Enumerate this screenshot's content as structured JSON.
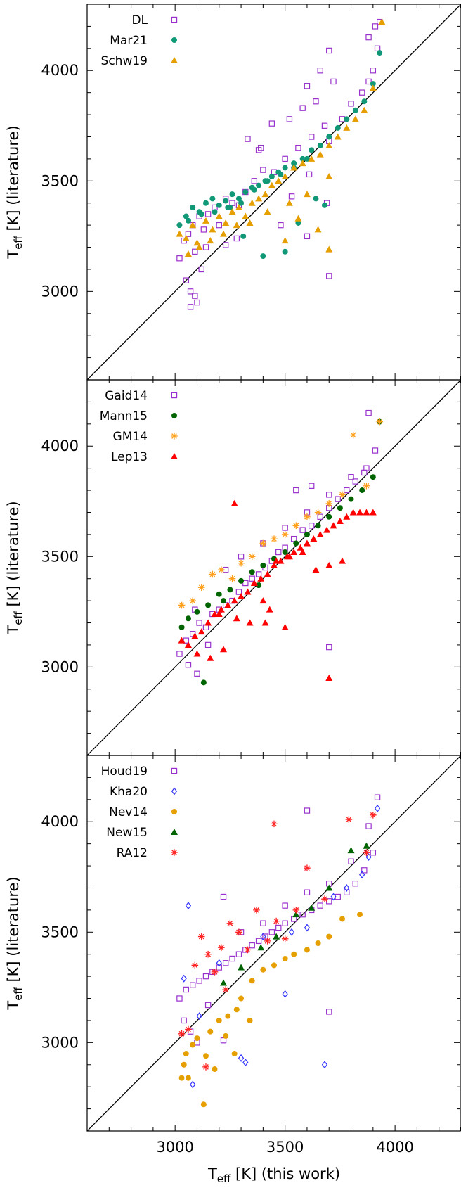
{
  "chart_data": [
    {
      "type": "scatter",
      "xlabel": "",
      "ylabel_main": "T",
      "ylabel_sub": "eff",
      "ylabel_tail": " [K] (literature)",
      "xlim": [
        2600,
        4300
      ],
      "ylim": [
        2600,
        4300
      ],
      "xticks": [],
      "yticks": [
        "3000",
        "3500",
        "4000"
      ],
      "grid": false,
      "legend_position": "top-left",
      "one_to_one_line": true,
      "series": [
        {
          "name": "DL",
          "marker": "square-open",
          "color": "#9932CC",
          "x": [
            3020,
            3040,
            3060,
            3080,
            3090,
            3110,
            3130,
            3150,
            3180,
            3200,
            3230,
            3260,
            3290,
            3320,
            3360,
            3400,
            3450,
            3500,
            3560,
            3620,
            3680,
            3700,
            3760,
            3800,
            3850,
            3880,
            3900,
            3920,
            3050,
            3070,
            3100,
            3120,
            3140,
            3070,
            3090,
            3480,
            3530,
            3610,
            3690,
            3390,
            3440,
            3520,
            3580,
            3640,
            3720,
            3330,
            3380,
            3230,
            3280,
            3600,
            3660,
            3700,
            3600,
            3700,
            3880,
            3910,
            3930
          ],
          "y": [
            3150,
            3230,
            3260,
            3300,
            3180,
            3340,
            3280,
            3350,
            3380,
            3300,
            3420,
            3400,
            3390,
            3450,
            3500,
            3550,
            3540,
            3600,
            3650,
            3700,
            3750,
            3680,
            3780,
            3850,
            3900,
            3950,
            4000,
            4100,
            3050,
            3000,
            2950,
            3100,
            3200,
            2930,
            2980,
            3300,
            3430,
            3530,
            3400,
            3650,
            3760,
            3780,
            3830,
            3860,
            3950,
            3690,
            3640,
            3210,
            3240,
            3930,
            4000,
            4090,
            3250,
            3070,
            4150,
            4200,
            4220
          ]
        },
        {
          "name": "Mar21",
          "marker": "circle",
          "color": "#119977",
          "x": [
            3020,
            3050,
            3080,
            3110,
            3140,
            3170,
            3200,
            3230,
            3260,
            3290,
            3320,
            3350,
            3380,
            3410,
            3440,
            3470,
            3500,
            3540,
            3580,
            3620,
            3660,
            3700,
            3740,
            3780,
            3820,
            3860,
            3900,
            3930,
            3060,
            3120,
            3180,
            3240,
            3300,
            3360,
            3420,
            3480,
            3540,
            3600,
            3400,
            3500,
            3310,
            3560,
            3640,
            3680,
            3250
          ],
          "y": [
            3300,
            3340,
            3380,
            3360,
            3400,
            3420,
            3390,
            3410,
            3440,
            3420,
            3450,
            3470,
            3480,
            3500,
            3520,
            3540,
            3560,
            3580,
            3600,
            3640,
            3660,
            3700,
            3740,
            3780,
            3820,
            3860,
            3940,
            4080,
            3320,
            3350,
            3360,
            3380,
            3400,
            3460,
            3500,
            3530,
            3560,
            3600,
            3160,
            3180,
            3250,
            3310,
            3420,
            3390,
            3380
          ]
        },
        {
          "name": "Schw19",
          "marker": "triangle",
          "color": "#E69F00",
          "x": [
            3020,
            3050,
            3080,
            3110,
            3140,
            3170,
            3200,
            3230,
            3260,
            3290,
            3320,
            3350,
            3380,
            3410,
            3440,
            3470,
            3500,
            3540,
            3580,
            3620,
            3660,
            3700,
            3740,
            3780,
            3820,
            3860,
            3900,
            3940,
            3060,
            3100,
            3160,
            3220,
            3280,
            3340,
            3420,
            3520,
            3600,
            3700,
            3650,
            3700,
            3560,
            3500
          ],
          "y": [
            3260,
            3240,
            3300,
            3200,
            3320,
            3280,
            3340,
            3310,
            3360,
            3380,
            3340,
            3400,
            3420,
            3440,
            3480,
            3500,
            3520,
            3560,
            3580,
            3600,
            3620,
            3660,
            3700,
            3740,
            3780,
            3820,
            3920,
            4220,
            3170,
            3220,
            3230,
            3260,
            3300,
            3310,
            3360,
            3400,
            3440,
            3520,
            3280,
            3190,
            3330,
            3230
          ]
        }
      ]
    },
    {
      "type": "scatter",
      "xlabel": "",
      "ylabel_main": "T",
      "ylabel_sub": "eff",
      "ylabel_tail": " [K] (literature)",
      "xlim": [
        2600,
        4300
      ],
      "ylim": [
        2600,
        4300
      ],
      "xticks": [],
      "yticks": [
        "3000",
        "3500",
        "4000"
      ],
      "grid": false,
      "legend_position": "top-left",
      "one_to_one_line": true,
      "series": [
        {
          "name": "Gaid14",
          "marker": "square-open",
          "color": "#9932CC",
          "x": [
            3020,
            3050,
            3080,
            3110,
            3140,
            3170,
            3200,
            3230,
            3260,
            3290,
            3320,
            3350,
            3380,
            3410,
            3440,
            3470,
            3500,
            3540,
            3580,
            3620,
            3660,
            3700,
            3740,
            3780,
            3820,
            3860,
            3880,
            3910,
            3060,
            3100,
            3150,
            3230,
            3300,
            3400,
            3500,
            3600,
            3700,
            3800,
            3870,
            3090,
            3700,
            3550,
            3620
          ],
          "y": [
            3060,
            3120,
            3150,
            3200,
            3180,
            3240,
            3260,
            3280,
            3300,
            3340,
            3380,
            3400,
            3420,
            3450,
            3480,
            3520,
            3540,
            3580,
            3620,
            3640,
            3680,
            3720,
            3760,
            3800,
            3840,
            3880,
            4150,
            3980,
            3010,
            2970,
            3100,
            3440,
            3500,
            3560,
            3630,
            3700,
            3780,
            3860,
            3900,
            3260,
            3090,
            3800,
            3820
          ]
        },
        {
          "name": "Mann15",
          "marker": "circle",
          "color": "#006400",
          "x": [
            3030,
            3060,
            3100,
            3150,
            3200,
            3250,
            3300,
            3350,
            3400,
            3450,
            3500,
            3550,
            3600,
            3650,
            3700,
            3750,
            3800,
            3850,
            3900,
            3930,
            3130,
            3220,
            3380
          ],
          "y": [
            3180,
            3220,
            3250,
            3280,
            3330,
            3350,
            3390,
            3430,
            3460,
            3490,
            3520,
            3560,
            3600,
            3640,
            3680,
            3720,
            3760,
            3800,
            3860,
            4110,
            2930,
            3300,
            3370
          ]
        },
        {
          "name": "GM14",
          "marker": "asterisk",
          "color": "#FF9F1A",
          "x": [
            3030,
            3080,
            3120,
            3170,
            3210,
            3260,
            3300,
            3350,
            3400,
            3450,
            3500,
            3550,
            3600,
            3650,
            3700,
            3760,
            3810,
            3870,
            3930
          ],
          "y": [
            3280,
            3300,
            3360,
            3420,
            3440,
            3400,
            3470,
            3500,
            3560,
            3580,
            3600,
            3640,
            3680,
            3700,
            3740,
            3780,
            4050,
            3820,
            4110
          ]
        },
        {
          "name": "Lep13",
          "marker": "triangle",
          "color": "#FF0000",
          "x": [
            3030,
            3060,
            3090,
            3120,
            3150,
            3180,
            3210,
            3240,
            3270,
            3300,
            3330,
            3360,
            3390,
            3420,
            3450,
            3480,
            3510,
            3540,
            3570,
            3600,
            3630,
            3660,
            3690,
            3720,
            3750,
            3780,
            3810,
            3840,
            3870,
            3900,
            3100,
            3160,
            3220,
            3280,
            3340,
            3400,
            3460,
            3520,
            3580,
            3640,
            3700,
            3760,
            3410,
            3270,
            3200,
            3700,
            3500,
            3430
          ],
          "y": [
            3120,
            3100,
            3140,
            3160,
            3200,
            3240,
            3260,
            3280,
            3300,
            3320,
            3340,
            3380,
            3400,
            3420,
            3460,
            3480,
            3500,
            3520,
            3540,
            3560,
            3580,
            3600,
            3620,
            3640,
            3660,
            3680,
            3700,
            3700,
            3700,
            3700,
            3060,
            3040,
            3080,
            3220,
            3200,
            3300,
            3480,
            3500,
            3520,
            3440,
            3460,
            3480,
            3200,
            3740,
            3240,
            2950,
            3180,
            3260
          ]
        }
      ]
    },
    {
      "type": "scatter",
      "xlabel_main": "T",
      "xlabel_sub": "eff",
      "xlabel_tail": " [K] (this work)",
      "ylabel_main": "T",
      "ylabel_sub": "eff",
      "ylabel_tail": " [K] (literature)",
      "xlim": [
        2600,
        4300
      ],
      "ylim": [
        2600,
        4300
      ],
      "xticks": [
        "3000",
        "3500",
        "4000"
      ],
      "yticks": [
        "3000",
        "3500",
        "4000"
      ],
      "grid": false,
      "legend_position": "top-left",
      "one_to_one_line": true,
      "series": [
        {
          "name": "Houd19",
          "marker": "square-open",
          "color": "#9932CC",
          "x": [
            3020,
            3050,
            3080,
            3110,
            3140,
            3170,
            3200,
            3230,
            3260,
            3290,
            3320,
            3350,
            3380,
            3410,
            3440,
            3470,
            3500,
            3540,
            3580,
            3620,
            3660,
            3700,
            3740,
            3780,
            3820,
            3860,
            3900,
            3040,
            3070,
            3100,
            3150,
            3220,
            3300,
            3400,
            3500,
            3600,
            3700,
            3800,
            3880,
            3920,
            3700,
            3220,
            3600
          ],
          "y": [
            3200,
            3240,
            3260,
            3280,
            3300,
            3320,
            3340,
            3360,
            3380,
            3400,
            3420,
            3440,
            3460,
            3480,
            3500,
            3520,
            3540,
            3560,
            3580,
            3600,
            3620,
            3640,
            3660,
            3680,
            3720,
            3780,
            3860,
            3100,
            3050,
            3000,
            3170,
            3660,
            3500,
            3540,
            3620,
            3680,
            3720,
            3820,
            3980,
            4110,
            3140,
            3010,
            4050
          ]
        },
        {
          "name": "Kha20",
          "marker": "diamond-open",
          "color": "#3333FF",
          "x": [
            3040,
            3060,
            3080,
            3110,
            3200,
            3300,
            3320,
            3400,
            3500,
            3530,
            3600,
            3680,
            3720,
            3780,
            3850,
            3880,
            3920
          ],
          "y": [
            3290,
            3620,
            2810,
            3120,
            3360,
            2930,
            2910,
            3480,
            3220,
            3500,
            3520,
            2900,
            3660,
            3700,
            3760,
            3840,
            4060
          ]
        },
        {
          "name": "Nev14",
          "marker": "circle",
          "color": "#E69F00",
          "x": [
            3030,
            3040,
            3050,
            3060,
            3080,
            3100,
            3130,
            3160,
            3200,
            3240,
            3280,
            3300,
            3350,
            3400,
            3450,
            3500,
            3540,
            3600,
            3650,
            3700,
            3760,
            3840,
            3140,
            3180,
            3230,
            3270,
            3340
          ],
          "y": [
            2840,
            2900,
            2950,
            2840,
            2990,
            3020,
            2720,
            3050,
            3100,
            3120,
            3150,
            3200,
            3280,
            3330,
            3350,
            3380,
            3400,
            3420,
            3450,
            3480,
            3560,
            3580,
            2940,
            2880,
            3030,
            2950,
            3100
          ]
        },
        {
          "name": "New15",
          "marker": "triangle",
          "color": "#006400",
          "x": [
            3220,
            3300,
            3390,
            3460,
            3550,
            3620,
            3700,
            3800,
            3870
          ],
          "y": [
            3270,
            3340,
            3430,
            3480,
            3580,
            3610,
            3700,
            3870,
            3890
          ]
        },
        {
          "name": "RA12",
          "marker": "asterisk",
          "color": "#FF2222",
          "x": [
            3030,
            3060,
            3090,
            3120,
            3150,
            3180,
            3210,
            3250,
            3290,
            3330,
            3370,
            3420,
            3460,
            3500,
            3550,
            3600,
            3680,
            3790,
            3870,
            3900,
            3140,
            3230,
            3450
          ],
          "y": [
            3040,
            3060,
            3350,
            3480,
            3400,
            3320,
            3430,
            3540,
            3500,
            3420,
            3600,
            3460,
            3550,
            3470,
            3600,
            3790,
            3650,
            4010,
            3860,
            4030,
            2890,
            3240,
            3990
          ]
        }
      ]
    }
  ]
}
